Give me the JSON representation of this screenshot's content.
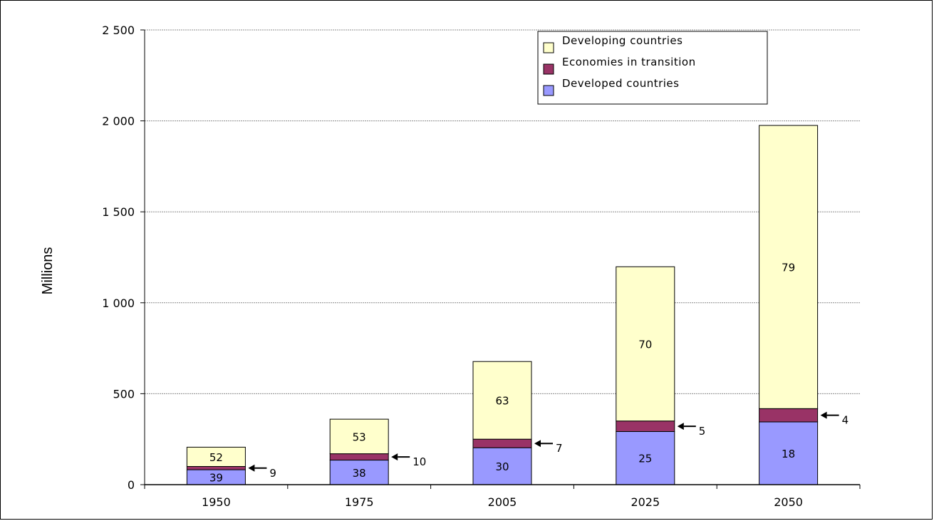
{
  "chart_data": {
    "type": "bar",
    "stacked": true,
    "title": "",
    "xlabel": "",
    "ylabel": "Millions",
    "ylim": [
      0,
      2500
    ],
    "yticks": [
      0,
      500,
      1000,
      1500,
      2000,
      2500
    ],
    "ytick_labels": [
      "0",
      "500",
      "1 000",
      "1 500",
      "2 000",
      "2 500"
    ],
    "categories": [
      "1950",
      "1975",
      "2005",
      "2025",
      "2050"
    ],
    "grid": true,
    "legend_position": "top-right",
    "series": [
      {
        "name": "Developed countries",
        "color": "#9999ff",
        "values": [
          82,
          135,
          203,
          292,
          345
        ],
        "labels": [
          "39",
          "38",
          "30",
          "25",
          "18"
        ]
      },
      {
        "name": "Economies in transition",
        "color": "#993366",
        "values": [
          18,
          35,
          47,
          58,
          73
        ],
        "labels": [
          "9",
          "10",
          "7",
          "5",
          "4"
        ]
      },
      {
        "name": "Developing countries",
        "color": "#ffffcc",
        "values": [
          106,
          190,
          427,
          848,
          1557
        ],
        "labels": [
          "52",
          "53",
          "63",
          "70",
          "79"
        ]
      }
    ],
    "legend_order": [
      "Developing countries",
      "Economies in transition",
      "Developed countries"
    ]
  }
}
